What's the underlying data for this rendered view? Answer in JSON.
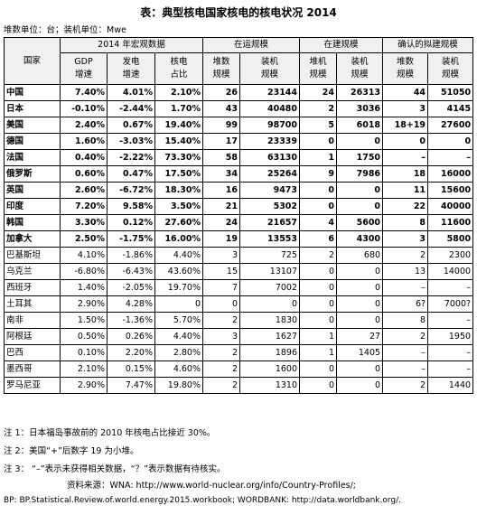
{
  "title": "表：典型核电国家核电的核电状况 2014",
  "units": "堆数单位：台；装机单位：Mwe",
  "header": {
    "country": "国家",
    "groups": [
      "2014 年宏观数据",
      "在运规模",
      "在建规模",
      "确认的拟建规模"
    ],
    "subcols": [
      "GDP\n增速",
      "发电\n增速",
      "核电\n占比",
      "堆数\n规模",
      "装机\n规模",
      "堆机\n规模",
      "装机\n规模",
      "堆数\n规模",
      "装机\n规模"
    ]
  },
  "rows": [
    {
      "name": "中国",
      "bold": true,
      "cells": [
        "7.40%",
        "4.01%",
        "2.10%",
        "26",
        "23144",
        "24",
        "26313",
        "44",
        "51050"
      ]
    },
    {
      "name": "日本",
      "bold": true,
      "cells": [
        "-0.10%",
        "-2.44%",
        "1.70%",
        "43",
        "40480",
        "2",
        "3036",
        "3",
        "4145"
      ]
    },
    {
      "name": "美国",
      "bold": true,
      "cells": [
        "2.40%",
        "0.67%",
        "19.40%",
        "99",
        "98700",
        "5",
        "6018",
        "18+19",
        "27600"
      ]
    },
    {
      "name": "德国",
      "bold": true,
      "cells": [
        "1.60%",
        "-3.03%",
        "15.40%",
        "17",
        "23339",
        "0",
        "0",
        "0",
        "0"
      ]
    },
    {
      "name": "法国",
      "bold": true,
      "cells": [
        "0.40%",
        "-2.22%",
        "73.30%",
        "58",
        "63130",
        "1",
        "1750",
        "–",
        "–"
      ]
    },
    {
      "name": "俄罗斯",
      "bold": true,
      "cells": [
        "0.60%",
        "0.47%",
        "17.50%",
        "34",
        "25264",
        "9",
        "7986",
        "18",
        "16000"
      ]
    },
    {
      "name": "英国",
      "bold": true,
      "cells": [
        "2.60%",
        "-6.72%",
        "18.30%",
        "16",
        "9473",
        "0",
        "0",
        "11",
        "15600"
      ]
    },
    {
      "name": "印度",
      "bold": true,
      "cells": [
        "7.20%",
        "9.58%",
        "3.50%",
        "21",
        "5302",
        "0",
        "0",
        "22",
        "40000"
      ]
    },
    {
      "name": "韩国",
      "bold": true,
      "cells": [
        "3.30%",
        "0.12%",
        "27.60%",
        "24",
        "21657",
        "4",
        "5600",
        "8",
        "11600"
      ]
    },
    {
      "name": "加拿大",
      "bold": true,
      "cells": [
        "2.50%",
        "-1.75%",
        "16.00%",
        "19",
        "13553",
        "6",
        "4300",
        "3",
        "5800"
      ]
    },
    {
      "name": "巴基斯坦",
      "bold": false,
      "cells": [
        "4.10%",
        "-1.86%",
        "4.40%",
        "3",
        "725",
        "2",
        "680",
        "2",
        "2300"
      ]
    },
    {
      "name": "乌克兰",
      "bold": false,
      "cells": [
        "-6.80%",
        "-6.43%",
        "43.60%",
        "15",
        "13107",
        "0",
        "0",
        "13",
        "14000"
      ]
    },
    {
      "name": "西班牙",
      "bold": false,
      "cells": [
        "1.40%",
        "-2.05%",
        "19.70%",
        "7",
        "7002",
        "0",
        "0",
        "–",
        "–"
      ]
    },
    {
      "name": "土耳其",
      "bold": false,
      "cells": [
        "2.90%",
        "4.28%",
        "0",
        "0",
        "0",
        "0",
        "0",
        "6?",
        "7000?"
      ]
    },
    {
      "name": "南非",
      "bold": false,
      "cells": [
        "1.50%",
        "-1.36%",
        "5.70%",
        "2",
        "1830",
        "0",
        "0",
        "8",
        "–"
      ]
    },
    {
      "name": "阿根廷",
      "bold": false,
      "cells": [
        "0.50%",
        "0.26%",
        "4.40%",
        "3",
        "1627",
        "1",
        "27",
        "2",
        "1950"
      ]
    },
    {
      "name": "巴西",
      "bold": false,
      "cells": [
        "0.10%",
        "2.20%",
        "2.80%",
        "2",
        "1896",
        "1",
        "1405",
        "–",
        "–"
      ]
    },
    {
      "name": "墨西哥",
      "bold": false,
      "cells": [
        "2.10%",
        "0.15%",
        "4.60%",
        "2",
        "1600",
        "0",
        "0",
        "–",
        "–"
      ]
    },
    {
      "name": "罗马尼亚",
      "bold": false,
      "cells": [
        "2.90%",
        "7.47%",
        "19.80%",
        "2",
        "1310",
        "0",
        "0",
        "2",
        "1440"
      ]
    }
  ],
  "notes": [
    "注 1：日本福岛事故前的 2010 年核电占比接近 30%。",
    "注 2：美国“+”后数字 19 为小堆。",
    "注 3： “–”表示未获得相关数据，“？”表示数据有待核实。"
  ],
  "sources": [
    "资料来源：WNA: http://www.world-nuclear.org/info/Country-Profiles/;",
    "BP: BP.Statistical.Review.of.world.energy.2015.workbook; WORDBANK: http://data.worldbank.org/."
  ]
}
